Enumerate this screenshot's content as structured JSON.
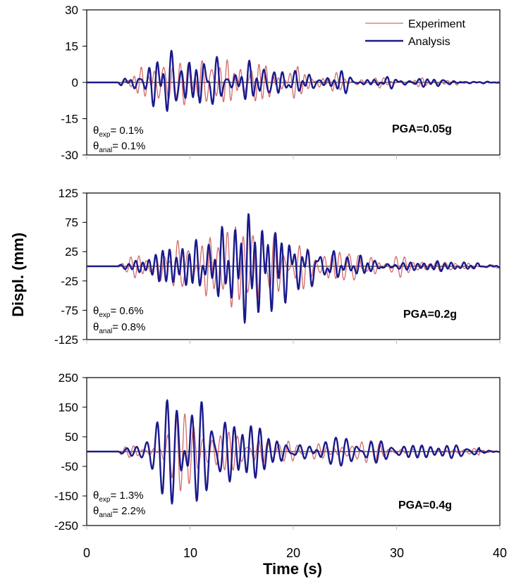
{
  "figure": {
    "ylabel": "Displ. (mm)",
    "xlabel": "Time (s)",
    "x_ticks": [
      "0",
      "10",
      "20",
      "30",
      "40"
    ]
  },
  "chart_data": [
    {
      "type": "line",
      "pga_label": "PGA=0.05g",
      "theta_exp_sub": "exp",
      "theta_exp_value": "= 0.1%",
      "theta_anal_sub": "anal",
      "theta_anal_value": "= 0.1%",
      "xlim": [
        0,
        40
      ],
      "ylim": [
        -30,
        30
      ],
      "y_ticks": [
        30,
        15,
        0,
        -15,
        -30
      ],
      "y_tick_labels": [
        "30",
        "15",
        "0",
        "-15",
        "-30"
      ],
      "legend": {
        "position": "top-right",
        "entries": [
          "Experiment",
          "Analysis"
        ]
      },
      "series": [
        {
          "name": "Experiment",
          "color": "#d46a6a",
          "gen": {
            "amp": 11,
            "seed": 3,
            "start": 3,
            "peak": 9,
            "end": 36
          }
        },
        {
          "name": "Analysis",
          "color": "#1a1a8c",
          "gen": {
            "amp": 13,
            "seed": 7,
            "start": 3,
            "peak": 9,
            "end": 36
          }
        }
      ]
    },
    {
      "type": "line",
      "pga_label": "PGA=0.2g",
      "theta_exp_sub": "exp",
      "theta_exp_value": "= 0.6%",
      "theta_anal_sub": "anal",
      "theta_anal_value": "= 0.8%",
      "xlim": [
        0,
        40
      ],
      "ylim": [
        -125,
        125
      ],
      "y_ticks": [
        125,
        75,
        25,
        -25,
        -75,
        -125
      ],
      "y_tick_labels": [
        "125",
        "75",
        "25",
        "-25",
        "-75",
        "-125"
      ],
      "series": [
        {
          "name": "Experiment",
          "color": "#d46a6a",
          "gen": {
            "amp": 72,
            "seed": 11,
            "start": 3,
            "peak": 15,
            "end": 38
          }
        },
        {
          "name": "Analysis",
          "color": "#1a1a8c",
          "gen": {
            "amp": 66,
            "seed": 5,
            "start": 3,
            "peak": 15,
            "end": 38
          }
        }
      ]
    },
    {
      "type": "line",
      "pga_label": "PGA=0.4g",
      "theta_exp_sub": "exp",
      "theta_exp_value": "= 1.3%",
      "theta_anal_sub": "anal",
      "theta_anal_value": "= 2.2%",
      "xlim": [
        0,
        40
      ],
      "ylim": [
        -250,
        250
      ],
      "y_ticks": [
        250,
        150,
        50,
        -50,
        -150,
        -250
      ],
      "y_tick_labels": [
        "250",
        "150",
        "50",
        "-50",
        "-150",
        "-250"
      ],
      "series": [
        {
          "name": "Experiment",
          "color": "#d46a6a",
          "gen": {
            "amp": 95,
            "seed": 2,
            "start": 3,
            "peak": 9,
            "end": 38
          }
        },
        {
          "name": "Analysis",
          "color": "#1a1a8c",
          "gen": {
            "amp": 135,
            "seed": 9,
            "start": 3,
            "peak": 9,
            "end": 38
          }
        }
      ]
    }
  ]
}
